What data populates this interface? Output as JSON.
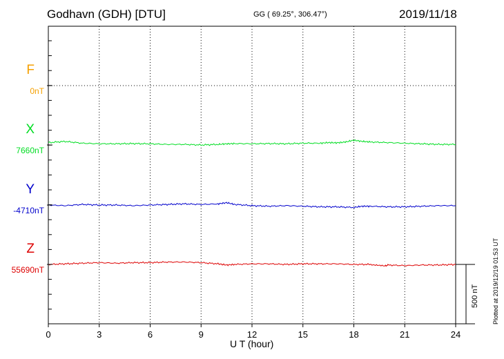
{
  "header": {
    "station": "Godhavn (GDH)  [DTU]",
    "coords": "GG ( 69.25°, 306.47°)",
    "date": "2019/11/18"
  },
  "footer": {
    "xlabel": "U T (hour)",
    "plotted": "Plotted at 2019/12/19 01:53 UT",
    "scale_label": "500 nT"
  },
  "chart_data": {
    "type": "line",
    "xlabel": "U T (hour)",
    "xlim": [
      0,
      24
    ],
    "x_ticks": [
      "0",
      "3",
      "6",
      "9",
      "12",
      "15",
      "18",
      "21",
      "24"
    ],
    "grid": true,
    "scale_bar_nT": 500,
    "series": [
      {
        "name": "F",
        "baseline": "0nT",
        "color": "#f5a000",
        "values": []
      },
      {
        "name": "X",
        "baseline": "7660nT",
        "color": "#00dd22",
        "x": [
          0,
          1,
          2,
          3,
          4,
          5,
          6,
          7,
          8,
          9,
          10,
          10.5,
          11,
          12,
          13,
          14,
          15,
          16,
          16.5,
          17,
          17.5,
          18,
          18.5,
          19,
          20,
          21,
          22,
          23,
          24
        ],
        "y": [
          20,
          30,
          15,
          10,
          10,
          12,
          10,
          5,
          5,
          0,
          5,
          10,
          12,
          10,
          12,
          10,
          15,
          15,
          20,
          18,
          25,
          40,
          30,
          25,
          20,
          15,
          10,
          5,
          5
        ]
      },
      {
        "name": "Y",
        "baseline": "-4710nT",
        "color": "#0000cc",
        "x": [
          0,
          1,
          2,
          3,
          4,
          5,
          6,
          7,
          8,
          9,
          10,
          10.5,
          11,
          12,
          13,
          14,
          15,
          16,
          17,
          18,
          18.5,
          19,
          20,
          21,
          22,
          23,
          24
        ],
        "y": [
          0,
          -5,
          5,
          0,
          0,
          -5,
          0,
          5,
          10,
          5,
          10,
          20,
          5,
          -5,
          -10,
          -5,
          -10,
          -15,
          -15,
          -20,
          -10,
          -10,
          -15,
          -15,
          -10,
          -5,
          -5
        ]
      },
      {
        "name": "Z",
        "baseline": "55690nT",
        "color": "#dd0000",
        "x": [
          0,
          1,
          2,
          3,
          4,
          5,
          6,
          7,
          8,
          9,
          10,
          10.5,
          11,
          12,
          13,
          14,
          15,
          16,
          17,
          18,
          19,
          19.8,
          20,
          21,
          22,
          23,
          24
        ],
        "y": [
          0,
          5,
          10,
          15,
          10,
          15,
          15,
          20,
          20,
          15,
          5,
          -5,
          0,
          5,
          5,
          0,
          5,
          5,
          5,
          0,
          0,
          -15,
          -5,
          -10,
          -5,
          -5,
          0
        ]
      }
    ]
  }
}
